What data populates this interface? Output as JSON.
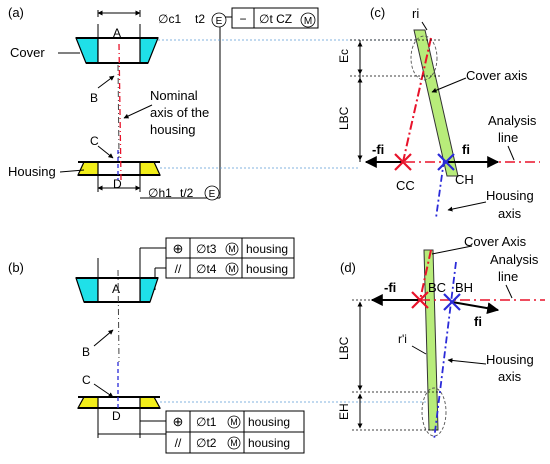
{
  "panel_a": {
    "label": "(a)",
    "tol_c1": "∅c1",
    "tol_t2": "t2",
    "envelope_mark": "E",
    "flatness_box": "∅t CZ",
    "max_mark": "M",
    "flatness_symbol": "−",
    "cover_label": "Cover",
    "housing_label": "Housing",
    "datum_A": "A",
    "datum_B": "B",
    "datum_C": "C",
    "datum_D": "D",
    "nominal_axis_line1": "Nominal",
    "nominal_axis_line2": "axis of the",
    "nominal_axis_line3": "housing",
    "tol_h1": "∅h1",
    "tol_t_half": "t/2",
    "envelope_mark_bottom": "E"
  },
  "panel_b": {
    "label": "(b)",
    "position_symbol": "⊕",
    "parallel_symbol": "//",
    "tol_t3": "∅t3",
    "tol_t4": "∅t4",
    "tol_t1": "∅t1",
    "tol_t2": "∅t2",
    "max_mark": "M",
    "housing_ref": "housing",
    "datum_A": "A",
    "datum_B": "B",
    "datum_C": "C",
    "datum_D": "D"
  },
  "panel_c": {
    "label": "(c)",
    "ri": "ri",
    "ec": "Ec",
    "lbc": "LBC",
    "cover_axis": "Cover axis",
    "minus_fi": "-fi",
    "fi": "fi",
    "analysis_line1": "Analysis",
    "analysis_line2": "line",
    "cc": "CC",
    "ch": "CH",
    "housing_axis1": "Housing",
    "housing_axis2": "axis"
  },
  "panel_d": {
    "label": "(d)",
    "cover_axis": "Cover Axis",
    "analysis_line1": "Analysis",
    "analysis_line2": "line",
    "minus_fi": "-fi",
    "fi": "fi",
    "bc": "BC",
    "bh": "BH",
    "lbc": "LBC",
    "rpi": "r'i",
    "housing_axis1": "Housing",
    "housing_axis2": "axis",
    "eh": "EH"
  },
  "colors": {
    "cover_fill": "#1fe0e8",
    "housing_fill": "#f2ee1a",
    "beam_fill": "#b8ec7a",
    "red_axis": "#e8122a",
    "blue_axis": "#2a2ad8",
    "guide": "#5b9bd5"
  }
}
